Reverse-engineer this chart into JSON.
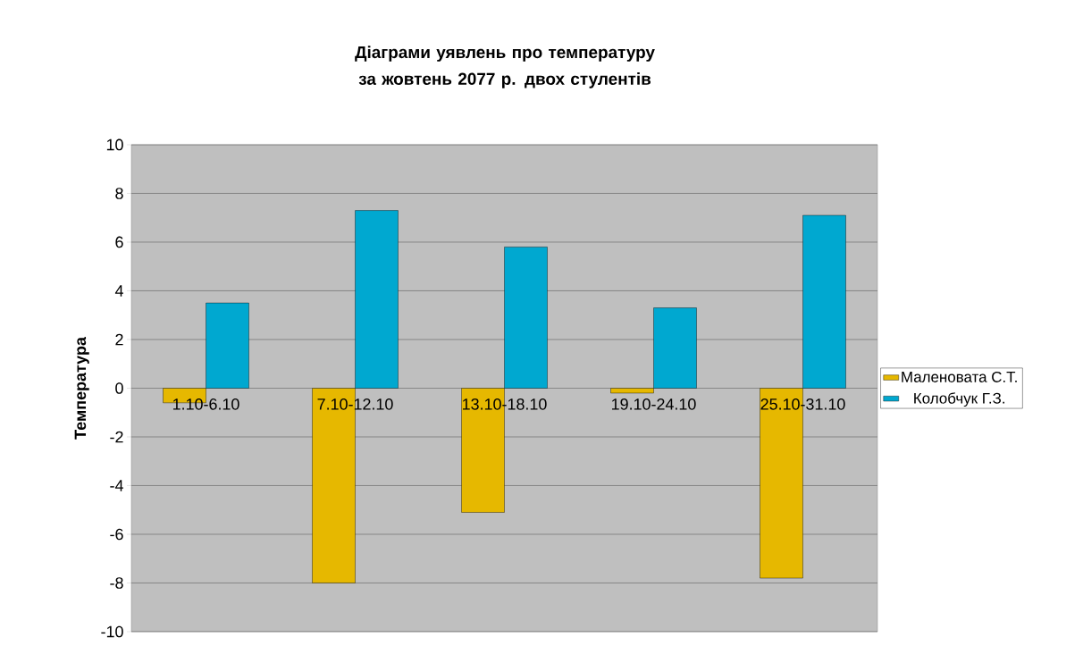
{
  "chart_data": {
    "type": "bar",
    "title": "Діаграми уявлень про температуру за жовтень 2077 р. двох стулентів",
    "ylabel": "Температура",
    "categories": [
      "1.10-6.10",
      "7.10-12.10",
      "13.10-18.10",
      "19.10-24.10",
      "25.10-31.10"
    ],
    "series": [
      {
        "name": "Маленовата С.Т.",
        "color": "#e6b800",
        "values": [
          -0.6,
          -8.0,
          -5.1,
          -0.2,
          -7.8
        ]
      },
      {
        "name": "Колобчук Г.З.",
        "color": "#00a8d0",
        "values": [
          3.5,
          7.3,
          5.8,
          3.3,
          7.1
        ]
      }
    ],
    "ylim": [
      -10,
      10
    ],
    "yticks": [
      -10,
      -8,
      -6,
      -4,
      -2,
      0,
      2,
      4,
      6,
      8,
      10
    ],
    "grid": "y",
    "legend": "right"
  }
}
